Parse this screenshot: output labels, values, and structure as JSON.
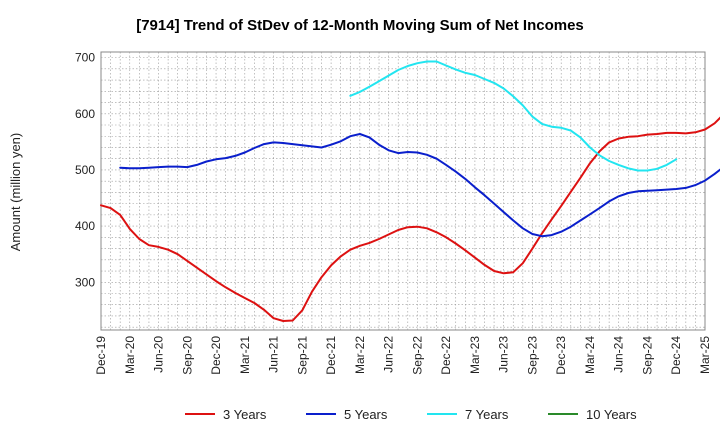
{
  "chart_data": {
    "type": "line",
    "title": "[7914]  Trend of StDev of 12-Month Moving Sum of Net Incomes",
    "ylabel": "Amount (million yen)",
    "xlabel": "",
    "ylim": [
      215,
      710
    ],
    "yticks": [
      300,
      400,
      500,
      600,
      700
    ],
    "x_tick_labels": [
      "Dec-19",
      "Mar-20",
      "Jun-20",
      "Sep-20",
      "Dec-20",
      "Mar-21",
      "Jun-21",
      "Sep-21",
      "Dec-21",
      "Mar-22",
      "Jun-22",
      "Sep-22",
      "Dec-22",
      "Mar-23",
      "Jun-23",
      "Sep-23",
      "Dec-23",
      "Mar-24",
      "Jun-24",
      "Sep-24",
      "Dec-24",
      "Mar-25"
    ],
    "x_start": "2019-12",
    "x_end": "2025-03",
    "grid": true,
    "legend_position": "bottom",
    "series": [
      {
        "name": "3 Years",
        "color": "#dd1111",
        "start": "2019-12",
        "values": [
          437,
          432,
          420,
          395,
          377,
          366,
          363,
          358,
          350,
          338,
          326,
          314,
          302,
          291,
          281,
          272,
          263,
          251,
          236,
          231,
          232,
          250,
          283,
          309,
          330,
          346,
          358,
          365,
          370,
          377,
          385,
          393,
          398,
          399,
          396,
          389,
          380,
          369,
          357,
          344,
          331,
          320,
          316,
          318,
          334,
          360,
          387,
          412,
          436,
          461,
          486,
          512,
          533,
          549,
          556,
          559,
          560,
          563,
          564,
          566,
          566,
          565,
          567,
          572,
          583,
          600
        ]
      },
      {
        "name": "5 Years",
        "color": "#0a1fcc",
        "start": "2020-02",
        "values": [
          504,
          503,
          503,
          504,
          505,
          506,
          506,
          505,
          509,
          515,
          519,
          521,
          525,
          531,
          539,
          546,
          549,
          548,
          546,
          544,
          542,
          540,
          545,
          551,
          560,
          564,
          558,
          545,
          535,
          530,
          532,
          531,
          527,
          520,
          509,
          497,
          484,
          469,
          455,
          440,
          425,
          410,
          396,
          386,
          382,
          384,
          390,
          399,
          410,
          421,
          432,
          444,
          453,
          459,
          462,
          463,
          464,
          465,
          466,
          468,
          473,
          481,
          493,
          506,
          530,
          556
        ]
      },
      {
        "name": "7 Years",
        "color": "#22e5f0",
        "start": "2022-02",
        "values": [
          632,
          639,
          648,
          658,
          668,
          678,
          685,
          690,
          693,
          693,
          686,
          679,
          673,
          669,
          662,
          655,
          645,
          631,
          615,
          595,
          582,
          577,
          575,
          570,
          558,
          540,
          526,
          516,
          509,
          503,
          499,
          499,
          502,
          509,
          519
        ]
      },
      {
        "name": "10 Years",
        "color": "#2a8a2a",
        "start": "2022-02",
        "values": []
      }
    ]
  }
}
